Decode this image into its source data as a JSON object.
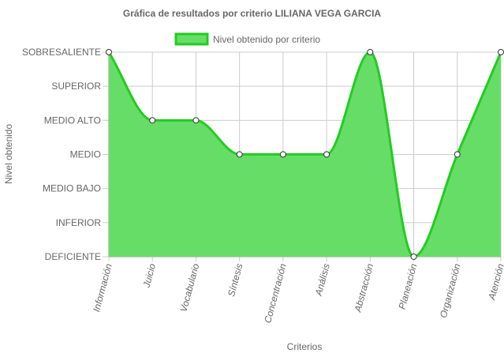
{
  "chart_data": {
    "type": "area",
    "title": "Gráfica de resultados por criterio LILIANA VEGA GARCIA",
    "xlabel": "Criterios",
    "ylabel": "Nivel obtenido",
    "legend_position": "top-center",
    "grid": true,
    "categories": [
      "Información",
      "Juicio",
      "Vocabulario",
      "Síntesis",
      "Concentración",
      "Análisis",
      "Abstracción",
      "Planeación",
      "Organización",
      "Atención"
    ],
    "y_levels": [
      "DEFICIENTE",
      "INFERIOR",
      "MEDIO BAJO",
      "MEDIO",
      "MEDIO ALTO",
      "SUPERIOR",
      "SOBRESALIENTE"
    ],
    "ylim": [
      0,
      6
    ],
    "series": [
      {
        "name": "Nivel obtenido por criterio",
        "values": [
          6,
          4,
          4,
          3,
          3,
          3,
          6,
          0,
          3,
          6
        ],
        "value_labels": [
          "SOBRESALIENTE",
          "MEDIO ALTO",
          "MEDIO ALTO",
          "MEDIO",
          "MEDIO",
          "MEDIO",
          "SOBRESALIENTE",
          "DEFICIENTE",
          "MEDIO",
          "SOBRESALIENTE"
        ],
        "fill_color": "#66dd66",
        "line_color": "#22cc22",
        "point_fill": "#ffffff",
        "point_stroke": "#333333"
      }
    ],
    "grid_color": "#cccccc",
    "axis_color": "#999999",
    "text_color": "#666666"
  }
}
